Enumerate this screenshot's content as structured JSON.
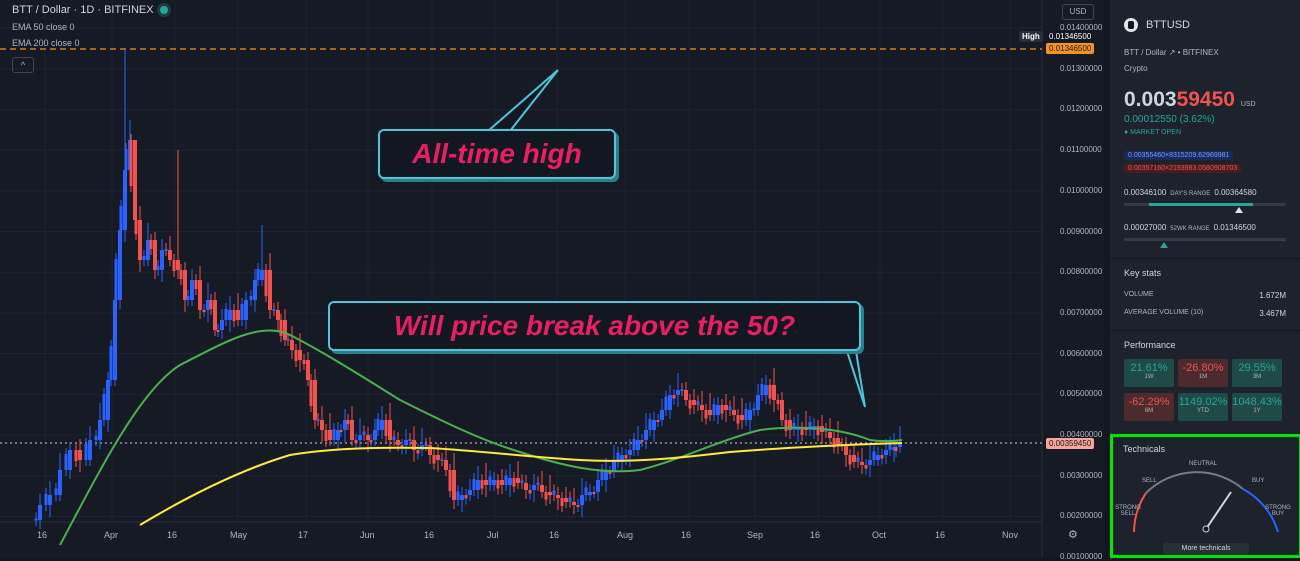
{
  "legend": {
    "title": "BTT / Dollar · 1D · BITFINEX",
    "ema50": "EMA 50 close 0",
    "ema200": "EMA 200 close 0"
  },
  "currency_button": "USD",
  "collapse_label": "^",
  "price_axis": [
    "0.01400000",
    "0.01300000",
    "0.01200000",
    "0.01100000",
    "0.01000000",
    "0.00900000",
    "0.00800000",
    "0.00700000",
    "0.00600000",
    "0.00500000",
    "0.00400000",
    "0.00300000",
    "0.00200000",
    "0.00100000"
  ],
  "high_tag": "High",
  "high_value": "0.01346500",
  "high_value2": "0.01346500",
  "current_price_tag": "0.00359450",
  "x_axis": [
    "16",
    "Apr",
    "16",
    "May",
    "17",
    "Jun",
    "16",
    "Jul",
    "16",
    "Aug",
    "16",
    "Sep",
    "16",
    "Oct",
    "16",
    "Nov"
  ],
  "annotations": {
    "callout1": "All-time high",
    "callout2": "Will price break above the 50?"
  },
  "panel": {
    "symbol": "BTTUSD",
    "subtitle": "BTT / Dollar ↗ • BITFINEX",
    "category": "Crypto",
    "price_main": "0.003",
    "price_hi": "59450",
    "price_unit": "USD",
    "change": "0.00012550 (3.62%)",
    "market_status": "● MARKET OPEN",
    "bid": "0.00355460×8315209.62969981",
    "ask": "0.00357160×2193983.0580908703",
    "day_low": "0.00346100",
    "day_label": "DAY'S RANGE",
    "day_high": "0.00364580",
    "wk_low": "0.00027000",
    "wk_label": "52WK RANGE",
    "wk_high": "0.01346500",
    "key_stats_title": "Key stats",
    "volume_label": "VOLUME",
    "volume_value": "1.672M",
    "avg_volume_label": "AVERAGE VOLUME (10)",
    "avg_volume_value": "3.467M",
    "performance_title": "Performance",
    "performance": [
      {
        "value": "21.61%",
        "period": "1W",
        "sign": "pos"
      },
      {
        "value": "-26.80%",
        "period": "1M",
        "sign": "neg"
      },
      {
        "value": "29.55%",
        "period": "3M",
        "sign": "pos"
      },
      {
        "value": "-62.29%",
        "period": "6M",
        "sign": "neg"
      },
      {
        "value": "1149.02%",
        "period": "YTD",
        "sign": "pos"
      },
      {
        "value": "1048.43%",
        "period": "1Y",
        "sign": "pos"
      }
    ]
  },
  "technicals": {
    "title": "Technicals",
    "neutral": "NEUTRAL",
    "sell": "SELL",
    "buy": "BUY",
    "strong_sell": "STRONG SELL",
    "strong_buy": "STRONG BUY",
    "more_button": "More technicals"
  },
  "colors": {
    "up": "#26a69a",
    "down": "#ef5350",
    "ema50": "#4caf50",
    "ema200": "#ffeb3b",
    "callout_text": "#e91e63",
    "callout_border": "#4cc7d8",
    "highlight": "#00e600"
  }
}
